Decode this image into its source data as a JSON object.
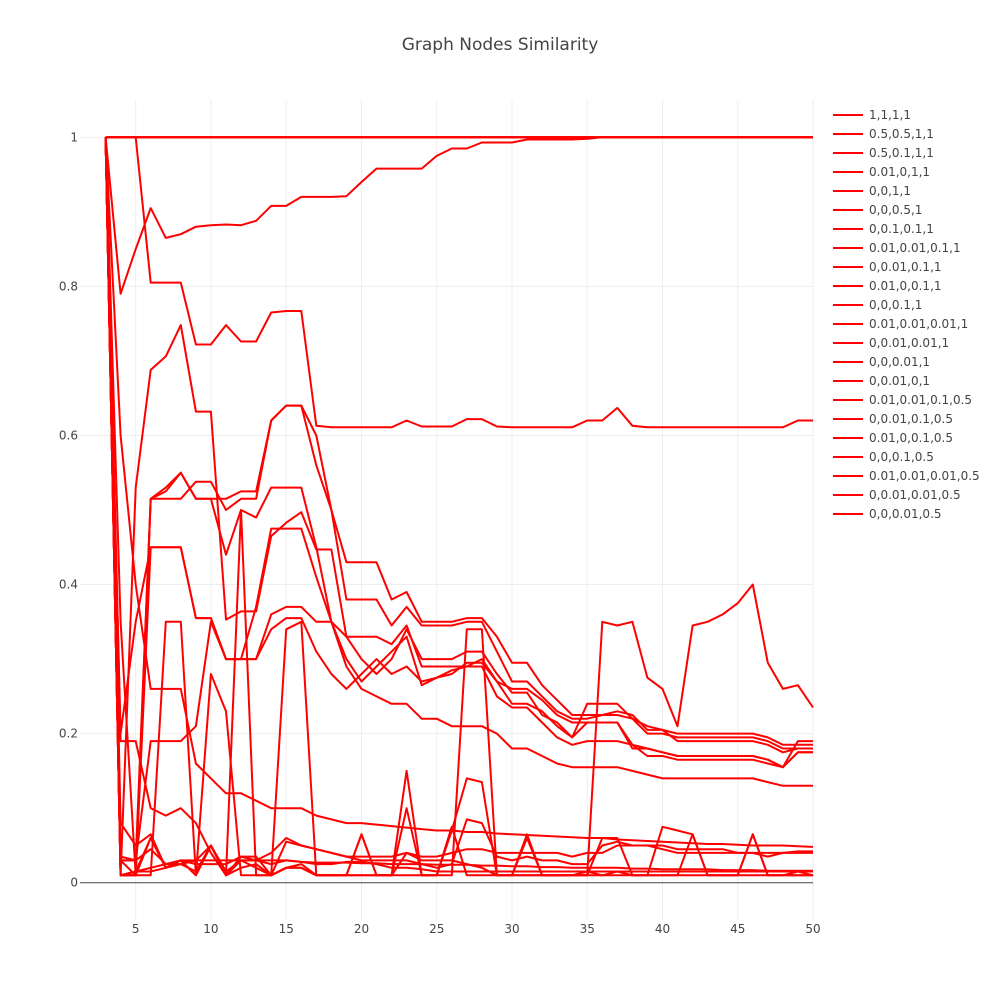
{
  "chart_data": {
    "type": "line",
    "title": "Graph Nodes Similarity",
    "xlabel": "",
    "ylabel": "",
    "xlim": [
      1.3,
      50
    ],
    "ylim": [
      -0.05,
      1.05
    ],
    "x_ticks": [
      5,
      10,
      15,
      20,
      25,
      30,
      35,
      40,
      45,
      50
    ],
    "y_ticks": [
      0,
      0.2,
      0.4,
      0.6,
      0.8,
      1
    ],
    "y_tick_labels": [
      "0",
      "0.2",
      "0.4",
      "0.6",
      "0.8",
      "1"
    ],
    "grid": true,
    "legend_position": "right",
    "line_color": "#ff0000",
    "x": [
      3,
      4,
      5,
      6,
      7,
      8,
      9,
      10,
      11,
      12,
      13,
      14,
      15,
      16,
      17,
      18,
      19,
      20,
      21,
      22,
      23,
      24,
      25,
      26,
      27,
      28,
      29,
      30,
      31,
      32,
      33,
      34,
      35,
      36,
      37,
      38,
      39,
      40,
      41,
      42,
      43,
      44,
      45,
      46,
      47,
      48,
      49,
      50
    ],
    "series": [
      {
        "name": "1,1,1,1",
        "values": [
          1,
          1,
          1,
          1,
          1,
          1,
          1,
          1,
          1,
          1,
          1,
          1,
          1,
          1,
          1,
          1,
          1,
          1,
          1,
          1,
          1,
          1,
          1,
          1,
          1,
          1,
          1,
          1,
          1,
          1,
          1,
          1,
          1,
          1,
          1,
          1,
          1,
          1,
          1,
          1,
          1,
          1,
          1,
          1,
          1,
          1,
          1,
          1
        ]
      },
      {
        "name": "0.5,0.5,1,1",
        "values": [
          1,
          1,
          1,
          1,
          1,
          1,
          1,
          1,
          1,
          1,
          1,
          1,
          1,
          1,
          1,
          1,
          1,
          1,
          1,
          1,
          1,
          1,
          1,
          1,
          1,
          1,
          1,
          1,
          1,
          1,
          1,
          1,
          1,
          1,
          1,
          1,
          1,
          1,
          1,
          1,
          1,
          1,
          1,
          1,
          1,
          1,
          1,
          1
        ]
      },
      {
        "name": "0.5,0.1,1,1",
        "values": [
          1,
          1,
          1,
          1,
          1,
          1,
          1,
          1,
          1,
          1,
          1,
          1,
          1,
          1,
          1,
          1,
          1,
          1,
          1,
          1,
          1,
          1,
          1,
          1,
          1,
          1,
          1,
          1,
          1,
          1,
          1,
          1,
          1,
          1,
          1,
          1,
          1,
          1,
          1,
          1,
          1,
          1,
          1,
          1,
          1,
          1,
          1,
          1
        ]
      },
      {
        "name": "0.01,0,1,1",
        "values": [
          1,
          0.79,
          0.85,
          0.905,
          0.865,
          0.87,
          0.88,
          0.882,
          0.883,
          0.882,
          0.888,
          0.908,
          0.908,
          0.92,
          0.92,
          0.92,
          0.921,
          0.94,
          0.958,
          0.958,
          0.958,
          0.958,
          0.975,
          0.985,
          0.985,
          0.993,
          0.993,
          0.993,
          0.997,
          0.997,
          0.997,
          0.997,
          0.998,
          1,
          1,
          1,
          1,
          1,
          1,
          1,
          1,
          1,
          1,
          1,
          1,
          1,
          1,
          1
        ]
      },
      {
        "name": "0,0,1,1",
        "values": [
          1,
          1,
          1,
          1,
          1,
          1,
          1,
          1,
          1,
          1,
          1,
          1,
          1,
          1,
          1,
          1,
          1,
          1,
          1,
          1,
          1,
          1,
          1,
          1,
          1,
          1,
          1,
          1,
          1,
          1,
          1,
          1,
          1,
          1,
          1,
          1,
          1,
          1,
          1,
          1,
          1,
          1,
          1,
          1,
          1,
          1,
          1,
          1
        ]
      },
      {
        "name": "0,0,0.5,1",
        "values": [
          1,
          0.6,
          0.4,
          0.26,
          0.26,
          0.26,
          0.16,
          0.14,
          0.12,
          0.12,
          0.11,
          0.1,
          0.1,
          0.1,
          0.09,
          0.085,
          0.08,
          0.08,
          0.078,
          0.076,
          0.074,
          0.072,
          0.07,
          0.07,
          0.068,
          0.068,
          0.066,
          0.065,
          0.064,
          0.063,
          0.062,
          0.061,
          0.06,
          0.06,
          0.058,
          0.057,
          0.056,
          0.055,
          0.054,
          0.053,
          0.052,
          0.052,
          0.051,
          0.05,
          0.05,
          0.05,
          0.049,
          0.048
        ]
      },
      {
        "name": "0,0.1,0.1,1",
        "values": [
          1,
          1,
          1,
          0.805,
          0.805,
          0.805,
          0.722,
          0.722,
          0.748,
          0.726,
          0.726,
          0.765,
          0.767,
          0.767,
          0.613,
          0.611,
          0.611,
          0.611,
          0.611,
          0.611,
          0.62,
          0.612,
          0.612,
          0.612,
          0.622,
          0.622,
          0.612,
          0.611,
          0.611,
          0.611,
          0.611,
          0.611,
          0.62,
          0.62,
          0.637,
          0.613,
          0.611,
          0.611,
          0.611,
          0.611,
          0.611,
          0.611,
          0.611,
          0.611,
          0.611,
          0.611,
          0.62,
          0.62
        ]
      },
      {
        "name": "0.01,0.01,0.1,1",
        "values": [
          1,
          0.01,
          0.53,
          0.688,
          0.706,
          0.748,
          0.632,
          0.632,
          0.353,
          0.364,
          0.364,
          0.465,
          0.483,
          0.497,
          0.447,
          0.447,
          0.33,
          0.33,
          0.33,
          0.32,
          0.345,
          0.29,
          0.29,
          0.29,
          0.29,
          0.29,
          0.25,
          0.235,
          0.235,
          0.215,
          0.195,
          0.185,
          0.19,
          0.19,
          0.19,
          0.185,
          0.17,
          0.17,
          0.165,
          0.165,
          0.165,
          0.165,
          0.165,
          0.165,
          0.16,
          0.155,
          0.19,
          0.19
        ]
      },
      {
        "name": "0,0.01,0.1,1",
        "values": [
          1,
          0.2,
          0.35,
          0.45,
          0.45,
          0.45,
          0.355,
          0.355,
          0.3,
          0.3,
          0.3,
          0.36,
          0.37,
          0.37,
          0.35,
          0.35,
          0.29,
          0.26,
          0.25,
          0.24,
          0.24,
          0.22,
          0.22,
          0.21,
          0.21,
          0.21,
          0.2,
          0.18,
          0.18,
          0.17,
          0.16,
          0.155,
          0.155,
          0.155,
          0.155,
          0.15,
          0.145,
          0.14,
          0.14,
          0.14,
          0.14,
          0.14,
          0.14,
          0.14,
          0.135,
          0.13,
          0.13,
          0.13
        ]
      },
      {
        "name": "0.01,0,0.1,1",
        "values": [
          1,
          0.01,
          0.01,
          0.515,
          0.515,
          0.515,
          0.538,
          0.538,
          0.5,
          0.515,
          0.515,
          0.62,
          0.64,
          0.64,
          0.56,
          0.5,
          0.43,
          0.43,
          0.43,
          0.38,
          0.39,
          0.35,
          0.35,
          0.35,
          0.355,
          0.355,
          0.33,
          0.295,
          0.295,
          0.265,
          0.245,
          0.225,
          0.225,
          0.225,
          0.23,
          0.225,
          0.205,
          0.205,
          0.2,
          0.2,
          0.2,
          0.2,
          0.2,
          0.2,
          0.195,
          0.185,
          0.185,
          0.185
        ]
      },
      {
        "name": "0,0,0.1,1",
        "values": [
          1,
          0.03,
          0.03,
          0.515,
          0.53,
          0.55,
          0.515,
          0.515,
          0.515,
          0.525,
          0.525,
          0.62,
          0.64,
          0.64,
          0.6,
          0.5,
          0.38,
          0.38,
          0.38,
          0.345,
          0.37,
          0.345,
          0.345,
          0.345,
          0.35,
          0.35,
          0.31,
          0.27,
          0.27,
          0.25,
          0.23,
          0.22,
          0.22,
          0.225,
          0.225,
          0.22,
          0.2,
          0.2,
          0.195,
          0.195,
          0.195,
          0.195,
          0.195,
          0.195,
          0.19,
          0.18,
          0.18,
          0.18
        ]
      },
      {
        "name": "0.01,0.01,0.01,1",
        "values": [
          1,
          0.01,
          0.015,
          0.02,
          0.025,
          0.025,
          0.03,
          0.03,
          0.03,
          0.03,
          0.03,
          0.03,
          0.03,
          0.028,
          0.027,
          0.027,
          0.027,
          0.026,
          0.026,
          0.025,
          0.025,
          0.025,
          0.024,
          0.024,
          0.024,
          0.023,
          0.023,
          0.022,
          0.022,
          0.021,
          0.021,
          0.02,
          0.02,
          0.02,
          0.02,
          0.019,
          0.019,
          0.018,
          0.018,
          0.018,
          0.018,
          0.017,
          0.017,
          0.017,
          0.016,
          0.016,
          0.016,
          0.016
        ]
      },
      {
        "name": "0,0.01,0.01,1",
        "values": [
          1,
          0.19,
          0.19,
          0.1,
          0.09,
          0.1,
          0.08,
          0.04,
          0.01,
          0.03,
          0.03,
          0.04,
          0.06,
          0.05,
          0.045,
          0.04,
          0.035,
          0.035,
          0.035,
          0.035,
          0.04,
          0.035,
          0.035,
          0.04,
          0.045,
          0.045,
          0.04,
          0.04,
          0.04,
          0.04,
          0.04,
          0.035,
          0.04,
          0.04,
          0.05,
          0.05,
          0.05,
          0.05,
          0.045,
          0.045,
          0.045,
          0.045,
          0.04,
          0.04,
          0.04,
          0.04,
          0.042,
          0.042
        ]
      },
      {
        "name": "0,0,0.01,1",
        "values": [
          1,
          0.035,
          0.03,
          0.045,
          0.025,
          0.03,
          0.01,
          0.05,
          0.015,
          0.03,
          0.02,
          0.01,
          0.02,
          0.025,
          0.01,
          0.01,
          0.01,
          0.065,
          0.01,
          0.01,
          0.04,
          0.03,
          0.03,
          0.03,
          0.025,
          0.02,
          0.01,
          0.01,
          0.06,
          0.01,
          0.01,
          0.01,
          0.015,
          0.01,
          0.015,
          0.01,
          0.01,
          0.01,
          0.01,
          0.01,
          0.01,
          0.01,
          0.01,
          0.01,
          0.01,
          0.01,
          0.01,
          0.01
        ]
      },
      {
        "name": "0,0.01,0,1",
        "values": [
          1,
          0.01,
          0.01,
          0.06,
          0.02,
          0.03,
          0.03,
          0.05,
          0.01,
          0.5,
          0.01,
          0.01,
          0.02,
          0.02,
          0.01,
          0.01,
          0.01,
          0.01,
          0.01,
          0.01,
          0.15,
          0.01,
          0.01,
          0.075,
          0.01,
          0.01,
          0.01,
          0.01,
          0.01,
          0.01,
          0.01,
          0.01,
          0.01,
          0.06,
          0.06,
          0.01,
          0.01,
          0.075,
          0.07,
          0.065,
          0.01,
          0.01,
          0.01,
          0.065,
          0.01,
          0.01,
          0.015,
          0.01
        ]
      },
      {
        "name": "0.01,0.01,0.1,0.5",
        "values": [
          1,
          0.35,
          0.01,
          0.01,
          0.35,
          0.35,
          0.01,
          0.28,
          0.23,
          0.01,
          0.01,
          0.01,
          0.34,
          0.35,
          0.01,
          0.01,
          0.01,
          0.01,
          0.01,
          0.01,
          0.01,
          0.01,
          0.01,
          0.01,
          0.34,
          0.34,
          0.01,
          0.01,
          0.01,
          0.01,
          0.01,
          0.01,
          0.01,
          0.35,
          0.345,
          0.35,
          0.275,
          0.26,
          0.21,
          0.345,
          0.35,
          0.36,
          0.375,
          0.4,
          0.295,
          0.26,
          0.265,
          0.235
        ]
      },
      {
        "name": "0,0.01,0.1,0.5",
        "values": [
          1,
          0.03,
          0.03,
          0.19,
          0.19,
          0.19,
          0.21,
          0.35,
          0.3,
          0.3,
          0.3,
          0.34,
          0.355,
          0.355,
          0.31,
          0.28,
          0.26,
          0.28,
          0.3,
          0.28,
          0.29,
          0.27,
          0.275,
          0.285,
          0.29,
          0.3,
          0.27,
          0.26,
          0.26,
          0.245,
          0.225,
          0.215,
          0.215,
          0.215,
          0.215,
          0.185,
          0.18,
          0.175,
          0.17,
          0.17,
          0.17,
          0.17,
          0.17,
          0.17,
          0.165,
          0.155,
          0.175,
          0.175
        ]
      },
      {
        "name": "0.01,0,0.1,0.5",
        "values": [
          1,
          0.01,
          0.01,
          0.45,
          0.45,
          0.45,
          0.355,
          0.355,
          0.3,
          0.3,
          0.37,
          0.475,
          0.475,
          0.475,
          0.41,
          0.35,
          0.3,
          0.27,
          0.29,
          0.31,
          0.33,
          0.265,
          0.275,
          0.28,
          0.295,
          0.295,
          0.27,
          0.24,
          0.24,
          0.23,
          0.21,
          0.195,
          0.215,
          0.215,
          0.215,
          0.18,
          0.18,
          0.175,
          0.17,
          0.17,
          0.17,
          0.17,
          0.17,
          0.17,
          0.165,
          0.155,
          0.175,
          0.175
        ]
      },
      {
        "name": "0,0,0.1,0.5",
        "values": [
          1,
          0.03,
          0.01,
          0.515,
          0.525,
          0.55,
          0.515,
          0.515,
          0.44,
          0.5,
          0.49,
          0.53,
          0.53,
          0.53,
          0.45,
          0.35,
          0.33,
          0.3,
          0.28,
          0.3,
          0.34,
          0.3,
          0.3,
          0.3,
          0.31,
          0.31,
          0.28,
          0.255,
          0.255,
          0.225,
          0.215,
          0.195,
          0.24,
          0.24,
          0.24,
          0.22,
          0.21,
          0.205,
          0.19,
          0.19,
          0.19,
          0.19,
          0.19,
          0.19,
          0.185,
          0.175,
          0.18,
          0.18
        ]
      },
      {
        "name": "0.01,0.01,0.01,0.5",
        "values": [
          1,
          0.01,
          0.015,
          0.015,
          0.02,
          0.03,
          0.025,
          0.025,
          0.025,
          0.035,
          0.03,
          0.025,
          0.03,
          0.028,
          0.025,
          0.025,
          0.028,
          0.028,
          0.025,
          0.02,
          0.02,
          0.018,
          0.015,
          0.015,
          0.015,
          0.015,
          0.015,
          0.015,
          0.015,
          0.015,
          0.015,
          0.015,
          0.015,
          0.015,
          0.015,
          0.015,
          0.015,
          0.015,
          0.015,
          0.015,
          0.015,
          0.015,
          0.015,
          0.015,
          0.015,
          0.015,
          0.015,
          0.015
        ]
      },
      {
        "name": "0,0.01,0.01,0.5",
        "values": [
          1,
          0.08,
          0.05,
          0.065,
          0.02,
          0.025,
          0.015,
          0.05,
          0.01,
          0.035,
          0.035,
          0.01,
          0.055,
          0.05,
          0.045,
          0.04,
          0.035,
          0.03,
          0.03,
          0.03,
          0.03,
          0.025,
          0.02,
          0.025,
          0.085,
          0.08,
          0.035,
          0.03,
          0.035,
          0.03,
          0.03,
          0.025,
          0.025,
          0.05,
          0.055,
          0.05,
          0.05,
          0.045,
          0.04,
          0.04,
          0.04,
          0.04,
          0.04,
          0.04,
          0.035,
          0.04,
          0.04,
          0.04
        ]
      },
      {
        "name": "0,0,0.01,0.5",
        "values": [
          1,
          0.01,
          0.015,
          0.06,
          0.02,
          0.03,
          0.01,
          0.05,
          0.01,
          0.02,
          0.025,
          0.01,
          0.02,
          0.02,
          0.01,
          0.01,
          0.01,
          0.065,
          0.01,
          0.01,
          0.1,
          0.01,
          0.01,
          0.07,
          0.14,
          0.135,
          0.01,
          0.01,
          0.065,
          0.01,
          0.01,
          0.01,
          0.01,
          0.01,
          0.01,
          0.01,
          0.01,
          0.01,
          0.01,
          0.065,
          0.01,
          0.01,
          0.01,
          0.065,
          0.01,
          0.01,
          0.01,
          0.01
        ]
      }
    ]
  }
}
